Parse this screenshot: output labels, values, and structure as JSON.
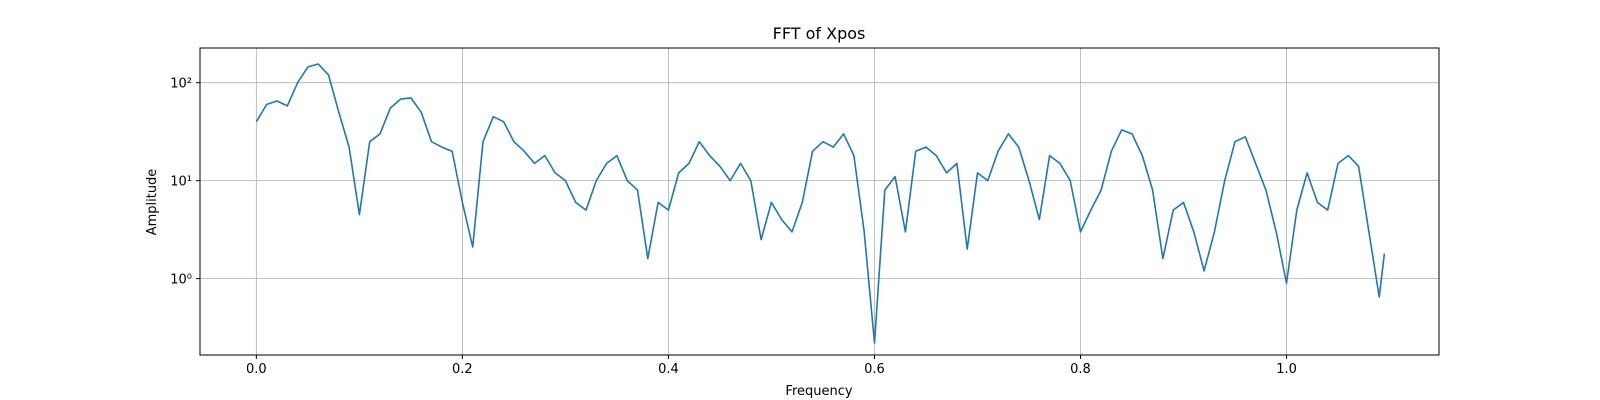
{
  "chart_data": {
    "type": "line",
    "title": "FFT of Xpos",
    "xlabel": "Frequency",
    "ylabel": "Amplitude",
    "yscale": "log",
    "grid": true,
    "color": "#1f77b4",
    "xlim": [
      -0.0547,
      1.148
    ],
    "ylim": [
      0.166,
      226
    ],
    "xticks": [
      {
        "value": 0,
        "label": "0.0"
      },
      0.2,
      0.4,
      0.6,
      0.8,
      {
        "value": 1,
        "label": "1.0"
      }
    ],
    "yticks": [
      {
        "value": 1,
        "label": "10⁰"
      },
      {
        "value": 10,
        "label": "10¹"
      },
      {
        "value": 100,
        "label": "10²"
      }
    ],
    "x": [
      0,
      0.01,
      0.02,
      0.03,
      0.04,
      0.05,
      0.06,
      0.07,
      0.08,
      0.09,
      0.1,
      0.11,
      0.12,
      0.13,
      0.14,
      0.15,
      0.16,
      0.17,
      0.18,
      0.19,
      0.2,
      0.21,
      0.22,
      0.23,
      0.24,
      0.25,
      0.26,
      0.27,
      0.28,
      0.29,
      0.3,
      0.31,
      0.32,
      0.33,
      0.34,
      0.35,
      0.36,
      0.37,
      0.38,
      0.39,
      0.4,
      0.41,
      0.42,
      0.43,
      0.44,
      0.45,
      0.46,
      0.47,
      0.48,
      0.49,
      0.5,
      0.51,
      0.52,
      0.53,
      0.54,
      0.55,
      0.56,
      0.57,
      0.58,
      0.59,
      0.6,
      0.61,
      0.62,
      0.63,
      0.64,
      0.65,
      0.66,
      0.67,
      0.68,
      0.69,
      0.7,
      0.71,
      0.72,
      0.73,
      0.74,
      0.75,
      0.76,
      0.77,
      0.78,
      0.79,
      0.8,
      0.81,
      0.82,
      0.83,
      0.84,
      0.85,
      0.86,
      0.87,
      0.88,
      0.89,
      0.9,
      0.91,
      0.92,
      0.93,
      0.94,
      0.95,
      0.96,
      0.97,
      0.98,
      0.99,
      1.0,
      1.01,
      1.02,
      1.03,
      1.04,
      1.05,
      1.06,
      1.07,
      1.08,
      1.09,
      1.095
    ],
    "values": [
      40,
      60,
      65,
      58,
      100,
      145,
      155,
      120,
      50,
      22,
      4.5,
      25,
      30,
      55,
      68,
      70,
      50,
      25,
      22,
      20,
      6,
      2.1,
      25,
      45,
      40,
      25,
      20,
      15,
      18,
      12,
      10,
      6,
      5,
      10,
      15,
      18,
      10,
      8,
      1.6,
      6,
      5,
      12,
      15,
      25,
      18,
      14,
      10,
      15,
      10,
      2.5,
      6,
      4,
      3,
      6,
      20,
      25,
      22,
      30,
      18,
      3,
      0.22,
      8,
      11,
      3,
      20,
      22,
      18,
      12,
      15,
      2,
      12,
      10,
      20,
      30,
      22,
      10,
      4,
      18,
      15,
      10,
      3,
      5,
      8,
      20,
      33,
      30,
      18,
      8,
      1.6,
      5,
      6,
      3,
      1.2,
      3,
      10,
      25,
      28,
      15,
      8,
      3,
      0.9,
      5,
      12,
      6,
      5,
      15,
      18,
      14,
      3,
      0.65,
      1.8
    ]
  }
}
